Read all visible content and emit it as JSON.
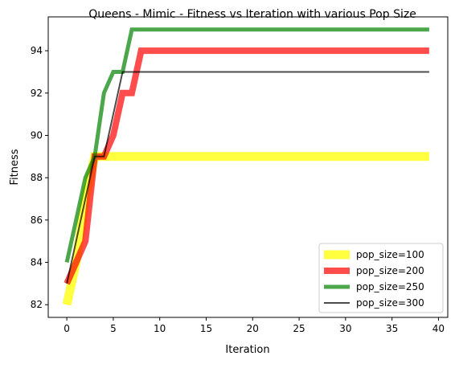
{
  "chart_data": {
    "type": "line",
    "title": "Queens - Mimic - Fitness vs Iteration with various Pop Size",
    "xlabel": "Iteration",
    "ylabel": "Fitness",
    "xlim": [
      -2,
      41
    ],
    "ylim": [
      81.4,
      95.6
    ],
    "x_ticks": [
      0,
      5,
      10,
      15,
      20,
      25,
      30,
      35,
      40
    ],
    "y_ticks": [
      82,
      84,
      86,
      88,
      90,
      92,
      94
    ],
    "grid": false,
    "legend_position": "lower-right",
    "series": [
      {
        "name": "pop_size=100",
        "color": "#ffff00",
        "alpha": 0.75,
        "x": [
          0,
          1,
          2,
          3,
          39
        ],
        "y": [
          82,
          84,
          87,
          89,
          89
        ]
      },
      {
        "name": "pop_size=200",
        "color": "#ff0000",
        "alpha": 0.7,
        "x": [
          0,
          1,
          2,
          3,
          4,
          5,
          6,
          7,
          8,
          39
        ],
        "y": [
          83,
          84,
          85,
          89,
          89,
          90,
          92,
          92,
          94,
          94
        ]
      },
      {
        "name": "pop_size=250",
        "color": "#008000",
        "alpha": 0.7,
        "x": [
          0,
          1,
          2,
          3,
          4,
          5,
          6,
          7,
          39
        ],
        "y": [
          84,
          86,
          88,
          89,
          92,
          93,
          93,
          95,
          95
        ]
      },
      {
        "name": "pop_size=300",
        "color": "#000000",
        "alpha": 0.7,
        "x": [
          0,
          1,
          2,
          3,
          4,
          5,
          6,
          39
        ],
        "y": [
          83,
          85,
          87,
          89,
          89,
          91,
          93,
          93
        ]
      }
    ]
  }
}
